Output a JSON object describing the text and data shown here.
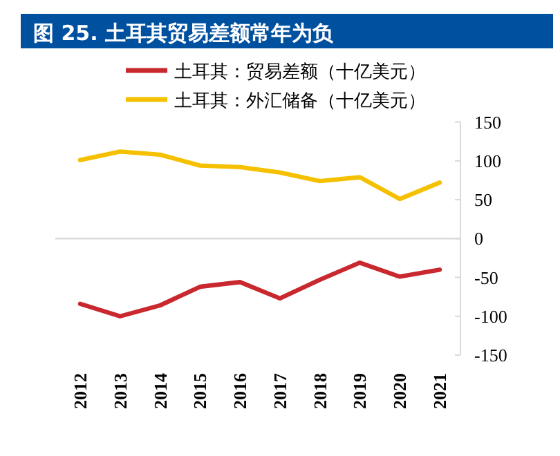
{
  "chart_data": {
    "type": "line",
    "title": "图 25. 土耳其贸易差额常年为负",
    "categories": [
      "2012",
      "2013",
      "2014",
      "2015",
      "2016",
      "2017",
      "2018",
      "2019",
      "2020",
      "2021"
    ],
    "series": [
      {
        "name": "土耳其：贸易差额（十亿美元）",
        "color": "#c8282e",
        "values": [
          -84,
          -100,
          -86,
          -62,
          -56,
          -77,
          -53,
          -31,
          -49,
          -40
        ]
      },
      {
        "name": "土耳其：外汇储备（十亿美元）",
        "color": "#f5c000",
        "values": [
          101,
          112,
          108,
          94,
          92,
          85,
          74,
          79,
          51,
          72
        ]
      }
    ],
    "ylim": [
      -150,
      150
    ],
    "yticks": [
      -150,
      -100,
      -50,
      0,
      50,
      100,
      150
    ],
    "ref_lines": [
      {
        "axis": "y",
        "value": 0,
        "color": "#d9d9d9"
      }
    ],
    "legend": "top",
    "grid": false,
    "marker": "none",
    "line_style": "solid"
  }
}
